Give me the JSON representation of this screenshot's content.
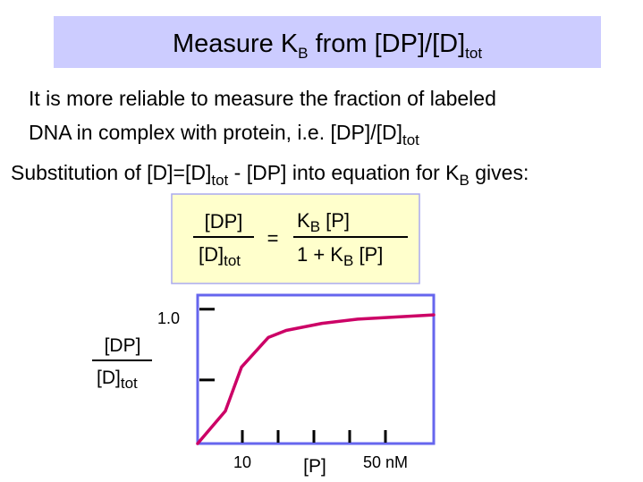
{
  "title": [
    "Measure K",
    "B",
    " from [DP]/[D]",
    "tot"
  ],
  "line1": "It is more reliable to measure the fraction of labeled",
  "line2": [
    "DNA in complex with protein, i.e. [DP]/[D]",
    "tot"
  ],
  "line3": [
    "Substitution of [D]=[D]",
    "tot",
    " - [DP] into equation for K",
    "B",
    " gives:"
  ],
  "equation": {
    "lhs_num": "[DP]",
    "lhs_den": [
      "[D]",
      "tot"
    ],
    "equals": "=",
    "rhs_num": [
      "K",
      "B",
      " [P]"
    ],
    "rhs_den": [
      "1 + K",
      "B",
      " [P]"
    ]
  },
  "chart_data": {
    "type": "line",
    "x_label": "[P]",
    "y_label": {
      "num": "[DP]",
      "den": [
        "[D]",
        "tot"
      ]
    },
    "x": [
      -2.5,
      5.25,
      9.75,
      17.25,
      22.25,
      32.25,
      42.25,
      63.5
    ],
    "values": [
      0.05,
      0.28,
      0.59,
      0.8,
      0.85,
      0.9,
      0.93,
      0.96
    ],
    "color": "#cc0066",
    "xlim": [
      -2.5,
      63.5
    ],
    "ylim": [
      0.05,
      1.1
    ],
    "xticks": [
      10,
      {
        "value": 20,
        "label": null
      },
      {
        "value": 30,
        "label": null
      },
      {
        "value": 40,
        "label": null
      },
      {
        "value": 50,
        "label": "50 nM"
      }
    ],
    "yticks": [
      {
        "value": 0.5,
        "label": null
      },
      {
        "value": 1,
        "label": "1.0"
      }
    ]
  }
}
